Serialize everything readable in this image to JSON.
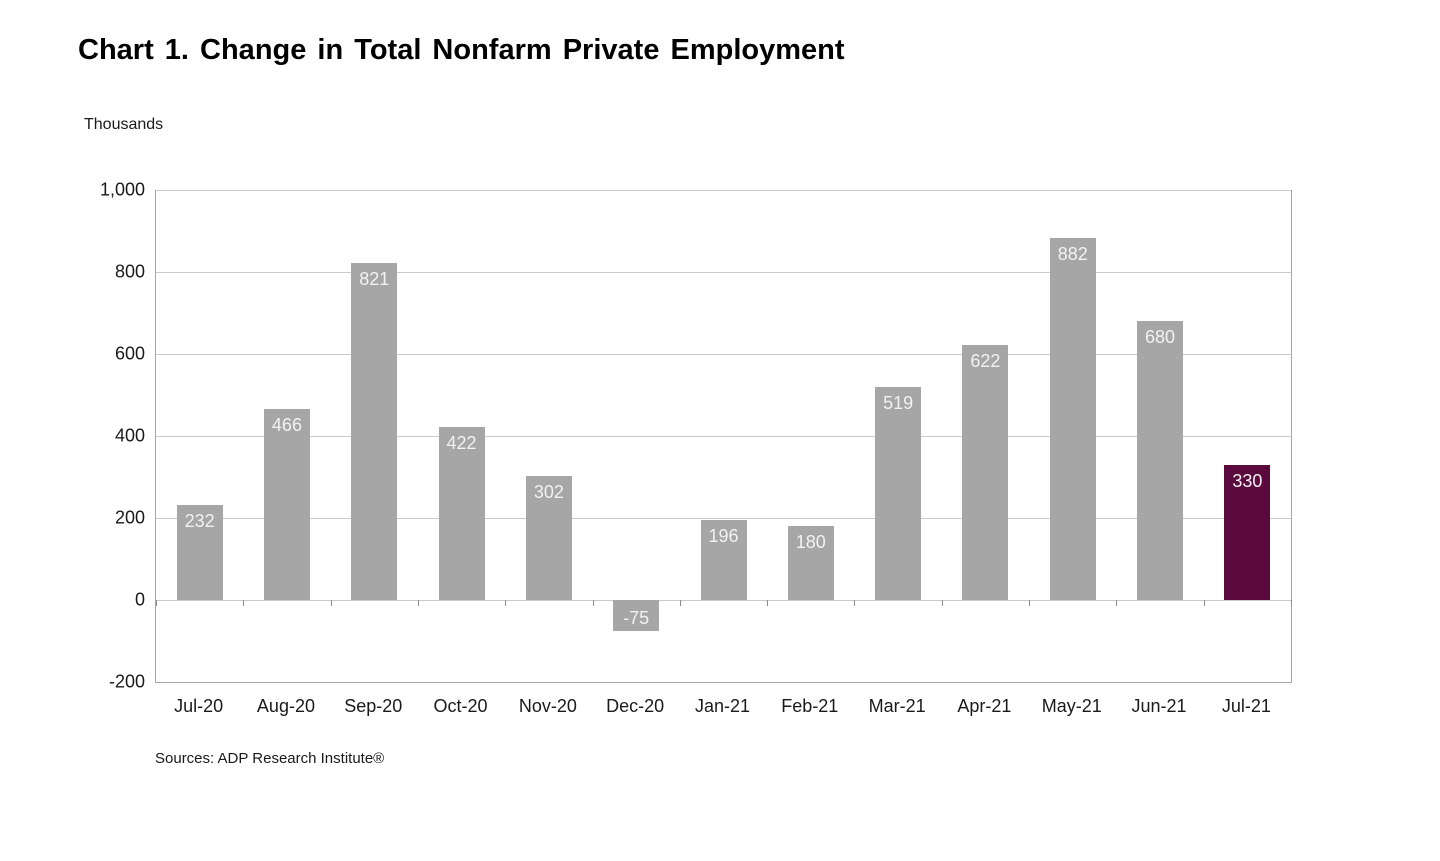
{
  "chart_data": {
    "type": "bar",
    "title": "Chart 1. Change in Total Nonfarm Private Employment",
    "ylabel": "Thousands",
    "xlabel": "",
    "categories": [
      "Jul-20",
      "Aug-20",
      "Sep-20",
      "Oct-20",
      "Nov-20",
      "Dec-20",
      "Jan-21",
      "Feb-21",
      "Mar-21",
      "Apr-21",
      "May-21",
      "Jun-21",
      "Jul-21"
    ],
    "values": [
      232,
      466,
      821,
      422,
      302,
      -75,
      196,
      180,
      519,
      622,
      882,
      680,
      330
    ],
    "ylim": [
      -200,
      1000
    ],
    "yticks": [
      1000,
      800,
      600,
      400,
      200,
      0,
      -200
    ],
    "ytick_labels": [
      "1,000",
      "800",
      "600",
      "400",
      "200",
      "0",
      "-200"
    ],
    "grid": true,
    "legend": "none",
    "data_labels": "inside-end",
    "bar_color": "#a6a6a6",
    "highlight_index": 12,
    "highlight_color": "#5a0a3c",
    "label_color": "#f2f2f2",
    "source": "Sources: ADP Research Institute®"
  }
}
